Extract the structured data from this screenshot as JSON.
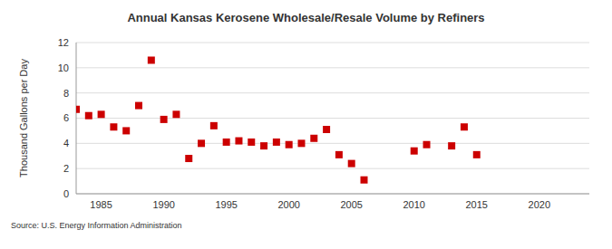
{
  "chart_data": {
    "type": "scatter",
    "title": "Annual Kansas Kerosene Wholesale/Resale Volume by Refiners",
    "subtitle": "Source: U.S. Energy Information Administration",
    "y_label": "Thousand Gallons per Day",
    "x": [
      1983,
      1984,
      1985,
      1986,
      1987,
      1988,
      1989,
      1990,
      1991,
      1992,
      1993,
      1994,
      1995,
      1996,
      1997,
      1998,
      1999,
      2000,
      2001,
      2002,
      2003,
      2004,
      2005,
      2006,
      2010,
      2011,
      2013,
      2014,
      2015
    ],
    "values": [
      6.7,
      6.2,
      6.3,
      5.3,
      5.0,
      7.0,
      10.6,
      5.9,
      6.3,
      2.8,
      4.0,
      5.4,
      4.1,
      4.2,
      4.1,
      3.8,
      4.1,
      3.9,
      4.0,
      4.4,
      5.1,
      3.1,
      2.4,
      1.1,
      3.4,
      3.9,
      3.8,
      5.3,
      3.1
    ],
    "color": "#cc0000",
    "marker": "square",
    "xlim": [
      1983,
      2024
    ],
    "xticks": [
      1985,
      1990,
      1995,
      2000,
      2005,
      2010,
      2015,
      2020
    ],
    "ylim": [
      0,
      12
    ],
    "yticks": [
      0,
      2,
      4,
      6,
      8,
      10,
      12
    ],
    "grid": true
  }
}
